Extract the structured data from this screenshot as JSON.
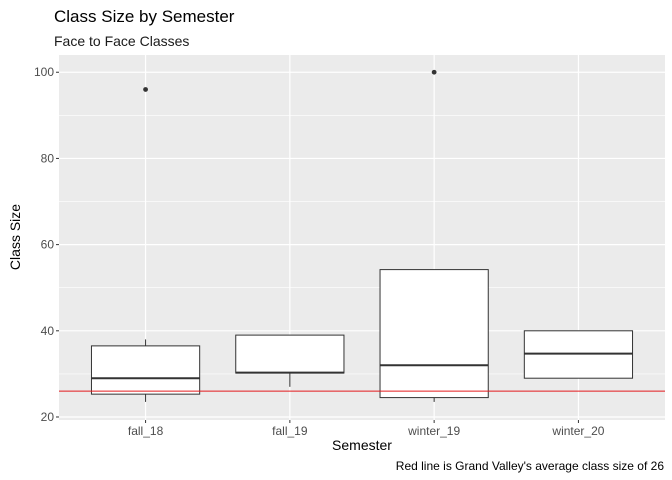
{
  "chart_data": {
    "type": "boxplot",
    "title": "Class Size by Semester",
    "subtitle": "Face to Face Classes",
    "xlabel": "Semester",
    "ylabel": "Class Size",
    "caption": "Red line is Grand Valley's average class size of 26",
    "categories": [
      "fall_18",
      "fall_19",
      "winter_19",
      "winter_20"
    ],
    "boxes": [
      {
        "category": "fall_18",
        "lower_whisker": 23.5,
        "q1": 25.3,
        "median": 29,
        "q3": 36.5,
        "upper_whisker": 38,
        "outliers": [
          96
        ]
      },
      {
        "category": "fall_19",
        "lower_whisker": 27,
        "q1": 30.2,
        "median": 30.3,
        "q3": 39,
        "upper_whisker": 39,
        "outliers": []
      },
      {
        "category": "winter_19",
        "lower_whisker": 23.5,
        "q1": 24.5,
        "median": 32,
        "q3": 54.2,
        "upper_whisker": 54.2,
        "outliers": [
          100
        ]
      },
      {
        "category": "winter_20",
        "lower_whisker": 29,
        "q1": 29,
        "median": 34.7,
        "q3": 40,
        "upper_whisker": 40,
        "outliers": []
      }
    ],
    "reference_line": {
      "y": 26,
      "color": "#e41a1c"
    },
    "yticks": [
      20,
      40,
      60,
      80,
      100
    ],
    "ylim": [
      19.3,
      104.0
    ],
    "grid": true,
    "panel_background": "#ebebeb",
    "gridline_color": "#ffffff"
  }
}
